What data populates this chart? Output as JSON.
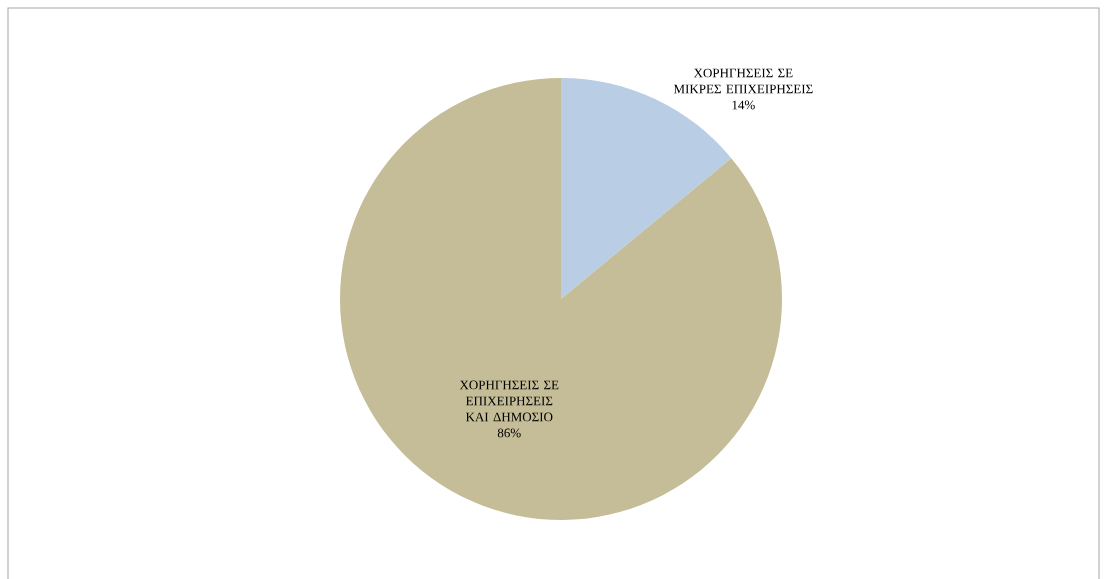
{
  "chart_data": {
    "type": "pie",
    "categories": [
      "ΧΟΡΗΓΗΣΕΙΣ ΣΕ ΜΙΚΡΕΣ ΕΠΙΧΕΙΡΗΣΕΙΣ",
      "ΧΟΡΗΓΗΣΕΙΣ ΣΕ ΕΠΙΧΕΙΡΗΣΕΙΣ ΚΑΙ ΔΗΜΟΣΙΟ"
    ],
    "values": [
      14,
      86
    ],
    "value_labels": [
      "14%",
      "86%"
    ],
    "colors": [
      "#b9cde5",
      "#c4bd97"
    ]
  }
}
